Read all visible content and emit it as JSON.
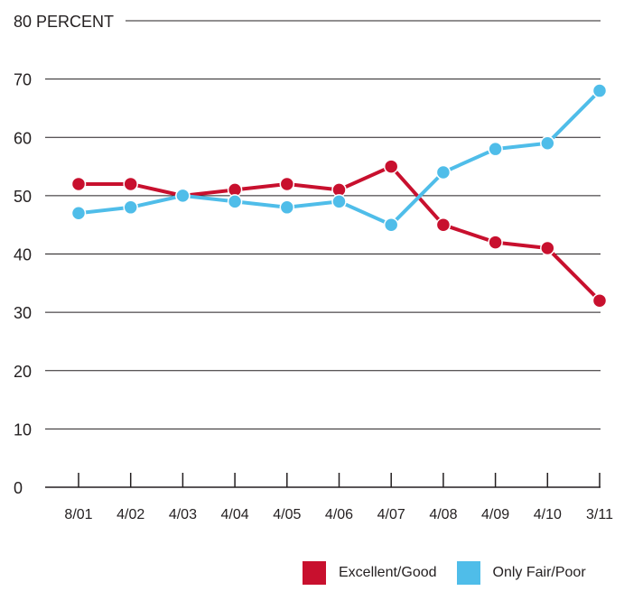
{
  "chart_data": {
    "type": "line",
    "title": "",
    "ylabel": "PERCENT",
    "ytick_labels": [
      "0",
      "10",
      "20",
      "30",
      "40",
      "50",
      "60",
      "70",
      "80 PERCENT"
    ],
    "yticks": [
      0,
      10,
      20,
      30,
      40,
      50,
      60,
      70,
      80
    ],
    "ylim": [
      0,
      80
    ],
    "categories": [
      "8/01",
      "4/02",
      "4/03",
      "4/04",
      "4/05",
      "4/06",
      "4/07",
      "4/08",
      "4/09",
      "4/10",
      "3/11"
    ],
    "grid": true,
    "legend_position": "bottom-right",
    "series": [
      {
        "name": "Excellent/Good",
        "color": "#c8102e",
        "values": [
          52,
          52,
          50,
          51,
          52,
          51,
          55,
          45,
          42,
          41,
          32
        ]
      },
      {
        "name": "Only Fair/Poor",
        "color": "#4fbde9",
        "values": [
          47,
          48,
          50,
          49,
          48,
          49,
          45,
          54,
          58,
          59,
          68
        ]
      }
    ]
  }
}
